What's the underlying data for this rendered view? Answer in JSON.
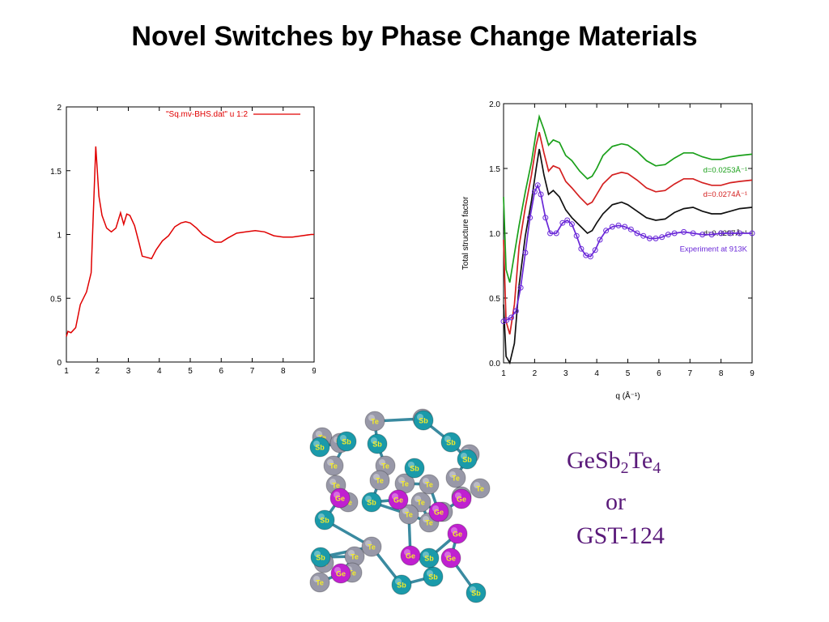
{
  "slide": {
    "title": "Novel Switches by Phase Change Materials",
    "formula_parts": [
      "GeSb",
      "2",
      "Te",
      "4"
    ],
    "formula_or": "or",
    "formula_alt": "GST-124"
  },
  "colors": {
    "left_series": "#e00000",
    "green": "#1aa01a",
    "red": "#d42020",
    "black": "#101010",
    "experiment": "#6a28d8",
    "atom_te": "#9898a8",
    "atom_sb": "#1a9aaa",
    "atom_ge": "#c020d0",
    "bond": "#3a8aa0"
  },
  "chart_data": [
    {
      "type": "line",
      "xlim": [
        1,
        9
      ],
      "ylim": [
        0,
        2
      ],
      "xticks": [
        "1",
        "2",
        "3",
        "4",
        "5",
        "6",
        "7",
        "8",
        "9"
      ],
      "yticks": [
        "0",
        "0.5",
        "1",
        "1.5",
        "2"
      ],
      "grid": false,
      "legend_position": "top-right",
      "series": [
        {
          "name": "\"Sq.mv-BHS.dat\" u 1:2",
          "x": [
            1.0,
            1.05,
            1.15,
            1.3,
            1.45,
            1.65,
            1.8,
            1.95,
            2.05,
            2.15,
            2.3,
            2.45,
            2.6,
            2.75,
            2.85,
            2.95,
            3.05,
            3.2,
            3.35,
            3.45,
            3.6,
            3.75,
            3.9,
            4.1,
            4.3,
            4.5,
            4.7,
            4.85,
            5.0,
            5.2,
            5.4,
            5.6,
            5.8,
            6.0,
            6.2,
            6.5,
            6.8,
            7.1,
            7.4,
            7.7,
            8.0,
            8.3,
            8.6,
            8.9,
            9.0
          ],
          "y": [
            0.2,
            0.24,
            0.23,
            0.27,
            0.45,
            0.55,
            0.7,
            1.69,
            1.3,
            1.15,
            1.05,
            1.02,
            1.05,
            1.17,
            1.08,
            1.16,
            1.15,
            1.07,
            0.93,
            0.83,
            0.82,
            0.81,
            0.88,
            0.95,
            0.99,
            1.06,
            1.09,
            1.1,
            1.09,
            1.05,
            1.0,
            0.97,
            0.94,
            0.94,
            0.97,
            1.01,
            1.02,
            1.03,
            1.02,
            0.99,
            0.98,
            0.98,
            0.99,
            1.0,
            1.0
          ]
        }
      ]
    },
    {
      "type": "line",
      "xlim": [
        1,
        9
      ],
      "ylim": [
        0.0,
        2.0
      ],
      "xticks": [
        "1",
        "2",
        "3",
        "4",
        "5",
        "6",
        "7",
        "8",
        "9"
      ],
      "yticks": [
        "0.0",
        "0.5",
        "1.0",
        "1.5",
        "2.0"
      ],
      "xlabel": "q (Å⁻¹)",
      "ylabel": "Total structure factor",
      "grid": false,
      "series": [
        {
          "name": "d=0.0253Å⁻¹",
          "x": [
            1.0,
            1.08,
            1.2,
            1.35,
            1.5,
            1.7,
            1.9,
            2.05,
            2.15,
            2.3,
            2.45,
            2.6,
            2.8,
            3.0,
            3.2,
            3.45,
            3.7,
            3.85,
            4.0,
            4.2,
            4.5,
            4.8,
            5.0,
            5.3,
            5.6,
            5.9,
            6.2,
            6.5,
            6.8,
            7.1,
            7.4,
            7.7,
            8.0,
            8.3,
            8.6,
            9.0
          ],
          "y": [
            1.28,
            0.72,
            0.62,
            0.84,
            1.06,
            1.32,
            1.55,
            1.78,
            1.9,
            1.8,
            1.68,
            1.72,
            1.7,
            1.6,
            1.56,
            1.48,
            1.42,
            1.44,
            1.5,
            1.6,
            1.67,
            1.69,
            1.68,
            1.63,
            1.56,
            1.52,
            1.53,
            1.58,
            1.62,
            1.62,
            1.59,
            1.57,
            1.57,
            1.59,
            1.6,
            1.61
          ]
        },
        {
          "name": "d=0.0274Å⁻¹",
          "x": [
            1.0,
            1.08,
            1.2,
            1.35,
            1.5,
            1.7,
            1.9,
            2.05,
            2.15,
            2.3,
            2.45,
            2.6,
            2.8,
            3.0,
            3.2,
            3.45,
            3.7,
            3.85,
            4.0,
            4.2,
            4.5,
            4.8,
            5.0,
            5.3,
            5.6,
            5.9,
            6.2,
            6.5,
            6.8,
            7.1,
            7.4,
            7.7,
            8.0,
            8.3,
            8.6,
            9.0
          ],
          "y": [
            0.95,
            0.32,
            0.22,
            0.45,
            0.9,
            1.2,
            1.45,
            1.68,
            1.78,
            1.62,
            1.48,
            1.52,
            1.5,
            1.4,
            1.35,
            1.28,
            1.22,
            1.24,
            1.3,
            1.38,
            1.45,
            1.47,
            1.46,
            1.41,
            1.35,
            1.32,
            1.33,
            1.38,
            1.42,
            1.42,
            1.39,
            1.37,
            1.37,
            1.39,
            1.4,
            1.41
          ]
        },
        {
          "name": "d=0.0297Å⁻¹",
          "x": [
            1.0,
            1.08,
            1.2,
            1.35,
            1.5,
            1.7,
            1.9,
            2.05,
            2.15,
            2.3,
            2.45,
            2.6,
            2.8,
            3.0,
            3.2,
            3.45,
            3.7,
            3.85,
            4.0,
            4.2,
            4.5,
            4.8,
            5.0,
            5.3,
            5.6,
            5.9,
            6.2,
            6.5,
            6.8,
            7.1,
            7.4,
            7.7,
            8.0,
            8.3,
            8.6,
            9.0
          ],
          "y": [
            0.45,
            0.05,
            0.0,
            0.15,
            0.6,
            0.98,
            1.25,
            1.5,
            1.65,
            1.45,
            1.3,
            1.33,
            1.28,
            1.18,
            1.12,
            1.06,
            1.0,
            1.02,
            1.08,
            1.15,
            1.22,
            1.24,
            1.22,
            1.17,
            1.12,
            1.1,
            1.11,
            1.16,
            1.19,
            1.2,
            1.17,
            1.15,
            1.15,
            1.17,
            1.19,
            1.2
          ]
        },
        {
          "name": "Experiment at 913K",
          "x": [
            1.0,
            1.1,
            1.25,
            1.4,
            1.55,
            1.7,
            1.85,
            2.0,
            2.1,
            2.2,
            2.35,
            2.5,
            2.7,
            2.9,
            3.05,
            3.2,
            3.35,
            3.5,
            3.65,
            3.8,
            3.95,
            4.1,
            4.3,
            4.5,
            4.7,
            4.9,
            5.1,
            5.3,
            5.5,
            5.7,
            5.9,
            6.1,
            6.3,
            6.5,
            6.8,
            7.1,
            7.4,
            7.7,
            8.0,
            8.3,
            8.6,
            9.0
          ],
          "y": [
            0.32,
            0.33,
            0.35,
            0.4,
            0.58,
            0.85,
            1.12,
            1.32,
            1.37,
            1.3,
            1.12,
            1.0,
            1.0,
            1.08,
            1.1,
            1.07,
            0.98,
            0.88,
            0.83,
            0.82,
            0.87,
            0.95,
            1.02,
            1.05,
            1.06,
            1.05,
            1.03,
            1.0,
            0.98,
            0.96,
            0.96,
            0.97,
            0.99,
            1.0,
            1.01,
            1.0,
            0.99,
            0.99,
            1.0,
            1.0,
            1.0,
            1.0
          ]
        }
      ]
    }
  ],
  "molecule": {
    "atoms": [
      {
        "label": "Te",
        "type": "Te"
      },
      {
        "label": "Te",
        "type": "Te"
      },
      {
        "label": "Te",
        "type": "Te"
      },
      {
        "label": "Te",
        "type": "Te"
      },
      {
        "label": "Te",
        "type": "Te"
      },
      {
        "label": "Te",
        "type": "Te"
      },
      {
        "label": "Te",
        "type": "Te"
      },
      {
        "label": "Te",
        "type": "Te"
      },
      {
        "label": "Te",
        "type": "Te"
      },
      {
        "label": "Te",
        "type": "Te"
      },
      {
        "label": "Te",
        "type": "Te"
      },
      {
        "label": "Te",
        "type": "Te"
      },
      {
        "label": "Te",
        "type": "Te"
      },
      {
        "label": "Te",
        "type": "Te"
      },
      {
        "label": "Te",
        "type": "Te"
      },
      {
        "label": "Te",
        "type": "Te"
      },
      {
        "label": "Te",
        "type": "Te"
      },
      {
        "label": "Te",
        "type": "Te"
      },
      {
        "label": "Te",
        "type": "Te"
      },
      {
        "label": "Te",
        "type": "Te"
      },
      {
        "label": "Te",
        "type": "Te"
      },
      {
        "label": "Te",
        "type": "Te"
      },
      {
        "label": "Te",
        "type": "Te"
      },
      {
        "label": "Te",
        "type": "Te"
      },
      {
        "label": "Sb",
        "type": "Sb"
      },
      {
        "label": "Sb",
        "type": "Sb"
      },
      {
        "label": "Sb",
        "type": "Sb"
      },
      {
        "label": "Sb",
        "type": "Sb"
      },
      {
        "label": "Sb",
        "type": "Sb"
      },
      {
        "label": "Sb",
        "type": "Sb"
      },
      {
        "label": "Sb",
        "type": "Sb"
      },
      {
        "label": "Sb",
        "type": "Sb"
      },
      {
        "label": "Sb",
        "type": "Sb"
      },
      {
        "label": "Sb",
        "type": "Sb"
      },
      {
        "label": "Sb",
        "type": "Sb"
      },
      {
        "label": "Sb",
        "type": "Sb"
      },
      {
        "label": "Sb",
        "type": "Sb"
      },
      {
        "label": "Sb",
        "type": "Sb"
      },
      {
        "label": "Ge",
        "type": "Ge"
      },
      {
        "label": "Ge",
        "type": "Ge"
      },
      {
        "label": "Ge",
        "type": "Ge"
      },
      {
        "label": "Ge",
        "type": "Ge"
      },
      {
        "label": "Ge",
        "type": "Ge"
      },
      {
        "label": "Ge",
        "type": "Ge"
      },
      {
        "label": "Ge",
        "type": "Ge"
      },
      {
        "label": "Ge",
        "type": "Ge"
      }
    ]
  }
}
